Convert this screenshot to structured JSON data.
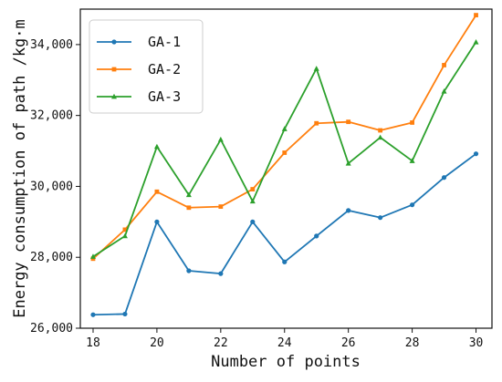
{
  "chart_data": {
    "type": "line",
    "xlabel": "Number of points",
    "ylabel": "Energy consumption of path /kg·m",
    "x": [
      18,
      19,
      20,
      21,
      22,
      23,
      24,
      25,
      26,
      27,
      28,
      29,
      30
    ],
    "xlim": [
      17.6,
      30.5
    ],
    "ylim": [
      26000,
      35000
    ],
    "xticks": [
      18,
      20,
      22,
      24,
      26,
      28,
      30
    ],
    "xtick_labels": [
      "18",
      "20",
      "22",
      "24",
      "26",
      "28",
      "30"
    ],
    "yticks": [
      26000,
      28000,
      30000,
      32000,
      34000
    ],
    "ytick_labels": [
      "26,000",
      "28,000",
      "30,000",
      "32,000",
      "34,000"
    ],
    "grid": false,
    "legend_position": "top-left",
    "series": [
      {
        "name": "GA-1",
        "color": "#1f77b4",
        "values": [
          26380,
          26400,
          29000,
          27620,
          27540,
          29000,
          27870,
          28600,
          29320,
          29120,
          29480,
          30250,
          30920
        ]
      },
      {
        "name": "GA-2",
        "color": "#ff7f0e",
        "values": [
          27960,
          28780,
          29850,
          29400,
          29430,
          29920,
          30950,
          31780,
          31820,
          31580,
          31800,
          33420,
          34830
        ]
      },
      {
        "name": "GA-3",
        "color": "#2ca02c",
        "values": [
          28020,
          28600,
          31120,
          29760,
          31320,
          29580,
          31620,
          33320,
          30650,
          31380,
          30720,
          32680,
          34070
        ]
      }
    ]
  }
}
